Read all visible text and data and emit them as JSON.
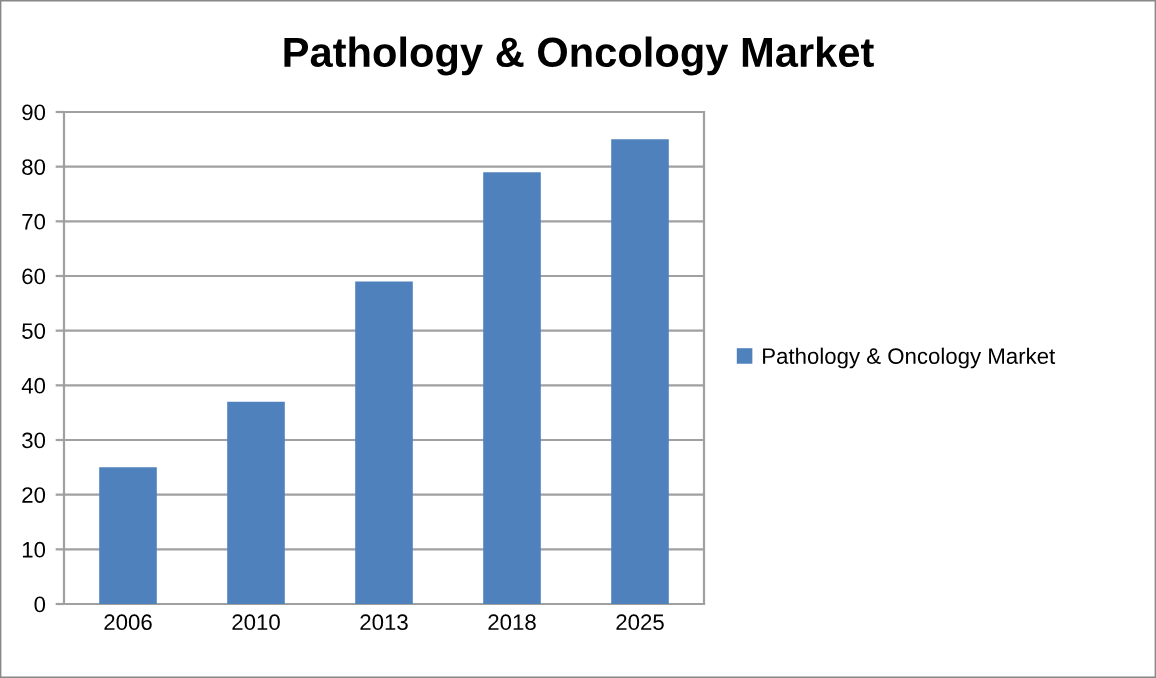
{
  "chart_data": {
    "type": "bar",
    "title": "Pathology & Oncology Market",
    "categories": [
      "2006",
      "2010",
      "2013",
      "2018",
      "2025"
    ],
    "series": [
      {
        "name": "Pathology & Oncology Market",
        "color": "#4f81bd",
        "values": [
          25,
          37,
          59,
          79,
          85
        ]
      }
    ],
    "ylim": [
      0,
      90
    ],
    "yticks": [
      0,
      10,
      20,
      30,
      40,
      50,
      60,
      70,
      80,
      90
    ],
    "grid": "y",
    "legend": "right"
  }
}
